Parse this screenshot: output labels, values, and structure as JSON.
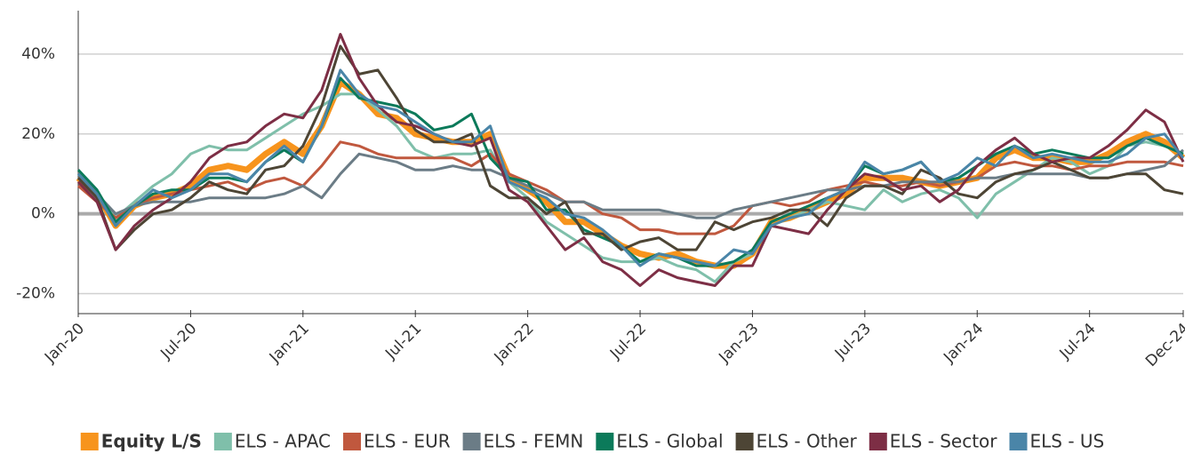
{
  "chart_data": {
    "type": "line",
    "categories": [
      "Jan-20",
      null,
      null,
      null,
      null,
      null,
      "Jul-20",
      null,
      null,
      null,
      null,
      null,
      "Jan-21",
      null,
      null,
      null,
      null,
      null,
      "Jul-21",
      null,
      null,
      null,
      null,
      null,
      "Jan-22",
      null,
      null,
      null,
      null,
      null,
      "Jul-22",
      null,
      null,
      null,
      null,
      null,
      "Jan-23",
      null,
      null,
      null,
      null,
      null,
      "Jul-23",
      null,
      null,
      null,
      null,
      null,
      "Jan-24",
      null,
      null,
      null,
      null,
      null,
      "Jul-24",
      null,
      null,
      null,
      null,
      "Dec-24"
    ],
    "ylim": [
      -25,
      50
    ],
    "yticks": [
      {
        "value": -20,
        "label": "-20%"
      },
      {
        "value": 0,
        "label": "0%"
      },
      {
        "value": 20,
        "label": "20%"
      },
      {
        "value": 40,
        "label": "40%"
      }
    ],
    "grid": true,
    "legend": "bottom",
    "series": [
      {
        "name": "Equity L/S",
        "color": "#f7941d",
        "values": [
          9,
          5,
          -3,
          2,
          4,
          5,
          7,
          11,
          12,
          11,
          15,
          18,
          15,
          22,
          33,
          30,
          25,
          24,
          20,
          19,
          18,
          18,
          20,
          9,
          6,
          3,
          -2,
          -2,
          -5,
          -8,
          -10,
          -11,
          -10,
          -12,
          -13,
          -13,
          -10,
          -2,
          -1,
          1,
          3,
          5,
          9,
          9,
          9,
          8,
          7,
          8,
          9,
          14,
          16,
          14,
          14,
          13,
          13,
          15,
          18,
          20,
          18,
          14
        ]
      },
      {
        "name": "ELS - APAC",
        "color": "#7fbfaa",
        "values": [
          10,
          5,
          -1,
          3,
          7,
          10,
          15,
          17,
          16,
          16,
          19,
          22,
          25,
          27,
          30,
          30,
          26,
          22,
          16,
          14,
          15,
          15,
          16,
          8,
          4,
          -2,
          -5,
          -8,
          -11,
          -12,
          -12,
          -11,
          -13,
          -14,
          -17,
          -12,
          -10,
          -3,
          -1,
          1,
          3,
          2,
          1,
          6,
          3,
          5,
          6,
          4,
          -1,
          5,
          8,
          11,
          14,
          13,
          10,
          12,
          17,
          18,
          17,
          15
        ]
      },
      {
        "name": "ELS - EUR",
        "color": "#c0583e",
        "values": [
          7,
          3,
          -1,
          2,
          4,
          5,
          6,
          7,
          8,
          6,
          8,
          9,
          7,
          12,
          18,
          17,
          15,
          14,
          14,
          14,
          14,
          12,
          15,
          10,
          8,
          6,
          3,
          3,
          0,
          -1,
          -4,
          -4,
          -5,
          -5,
          -5,
          -3,
          2,
          3,
          2,
          3,
          6,
          7,
          8,
          7,
          7,
          8,
          7,
          8,
          9,
          12,
          13,
          12,
          12,
          11,
          12,
          12,
          13,
          13,
          13,
          12
        ]
      },
      {
        "name": "ELS - FEMN",
        "color": "#6b7c86",
        "values": [
          10,
          5,
          0,
          2,
          3,
          3,
          3,
          4,
          4,
          4,
          4,
          5,
          7,
          4,
          10,
          15,
          14,
          13,
          11,
          11,
          12,
          11,
          11,
          9,
          7,
          5,
          3,
          3,
          1,
          1,
          1,
          1,
          0,
          -1,
          -1,
          1,
          2,
          3,
          4,
          5,
          6,
          6,
          7,
          7,
          8,
          8,
          8,
          8,
          9,
          9,
          10,
          10,
          10,
          10,
          9,
          9,
          10,
          11,
          12,
          16
        ]
      },
      {
        "name": "ELS - Global",
        "color": "#0b7a5a",
        "values": [
          11,
          6,
          -2,
          2,
          5,
          6,
          6,
          9,
          9,
          8,
          13,
          16,
          13,
          22,
          34,
          29,
          28,
          27,
          25,
          21,
          22,
          25,
          14,
          9,
          8,
          1,
          1,
          -4,
          -6,
          -8,
          -12,
          -10,
          -11,
          -13,
          -13,
          -12,
          -9,
          -2,
          0,
          2,
          4,
          6,
          12,
          10,
          11,
          13,
          8,
          9,
          12,
          15,
          17,
          15,
          16,
          15,
          14,
          14,
          17,
          19,
          17,
          15
        ]
      },
      {
        "name": "ELS - Other",
        "color": "#4d4535",
        "values": [
          9,
          4,
          -9,
          -4,
          0,
          1,
          4,
          8,
          6,
          5,
          11,
          12,
          17,
          27,
          42,
          35,
          36,
          29,
          21,
          18,
          18,
          20,
          7,
          4,
          4,
          0,
          3,
          -5,
          -5,
          -9,
          -7,
          -6,
          -9,
          -9,
          -2,
          -4,
          -2,
          -1,
          1,
          1,
          -3,
          4,
          7,
          7,
          5,
          11,
          9,
          5,
          4,
          8,
          10,
          11,
          13,
          11,
          9,
          9,
          10,
          10,
          6,
          5
        ]
      },
      {
        "name": "ELS - Sector",
        "color": "#7d2e45",
        "values": [
          8,
          3,
          -9,
          -3,
          1,
          4,
          8,
          14,
          17,
          18,
          22,
          25,
          24,
          31,
          45,
          34,
          27,
          23,
          22,
          20,
          18,
          17,
          19,
          6,
          3,
          -3,
          -9,
          -6,
          -12,
          -14,
          -18,
          -14,
          -16,
          -17,
          -18,
          -13,
          -13,
          -3,
          -4,
          -5,
          1,
          6,
          10,
          9,
          6,
          7,
          3,
          6,
          12,
          16,
          19,
          15,
          13,
          14,
          14,
          17,
          21,
          26,
          23,
          13
        ]
      },
      {
        "name": "ELS - US",
        "color": "#4a85a8",
        "values": [
          10,
          5,
          -3,
          2,
          6,
          4,
          6,
          10,
          10,
          8,
          13,
          17,
          13,
          22,
          36,
          30,
          27,
          26,
          23,
          20,
          18,
          18,
          22,
          8,
          6,
          4,
          0,
          -1,
          -4,
          -8,
          -13,
          -10,
          -11,
          -12,
          -13,
          -9,
          -10,
          -3,
          -1,
          0,
          4,
          6,
          13,
          10,
          11,
          13,
          8,
          10,
          14,
          12,
          17,
          14,
          15,
          14,
          13,
          13,
          15,
          19,
          20,
          14
        ]
      }
    ]
  }
}
